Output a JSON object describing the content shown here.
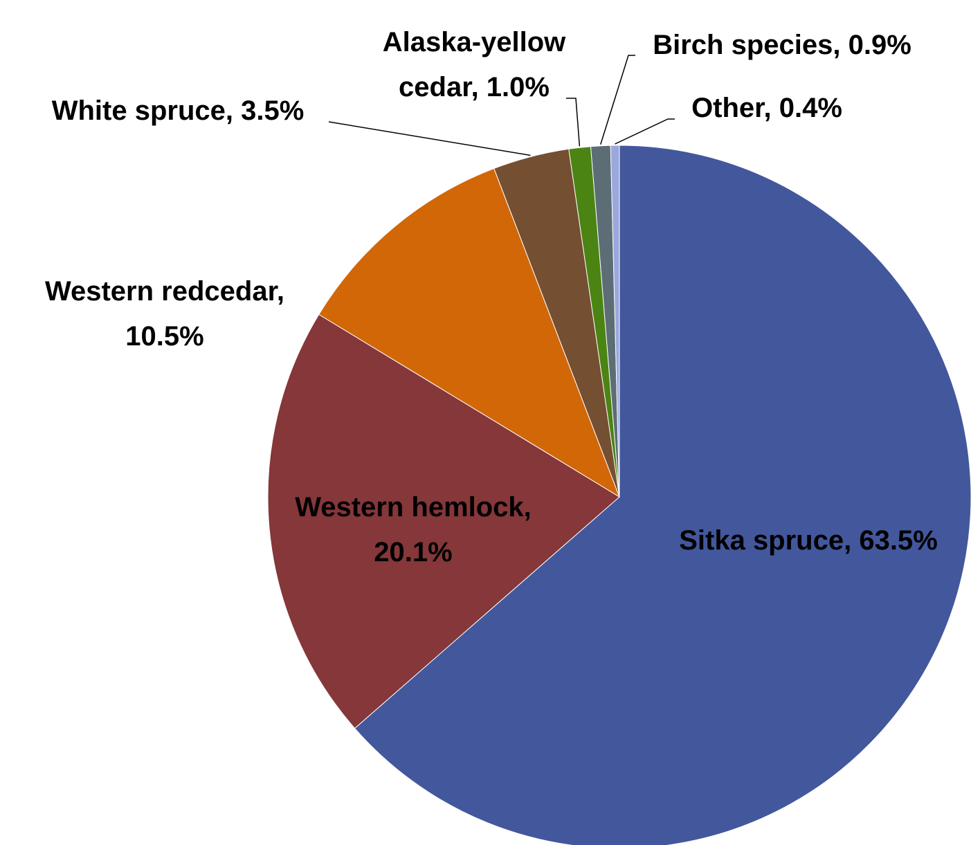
{
  "chart_data": {
    "type": "pie",
    "categories": [
      "Sitka spruce",
      "Western hemlock",
      "Western redcedar",
      "White spruce",
      "Alaska-yellow cedar",
      "Birch species",
      "Other"
    ],
    "values": [
      63.5,
      20.1,
      10.5,
      3.5,
      1.0,
      0.9,
      0.4
    ],
    "labels": [
      [
        "Sitka spruce, 63.5%"
      ],
      [
        "Western hemlock,",
        "20.1%"
      ],
      [
        "Western redcedar,",
        "10.5%"
      ],
      [
        "White spruce, 3.5%"
      ],
      [
        "Alaska-yellow",
        "cedar, 1.0%"
      ],
      [
        "Birch species, 0.9%"
      ],
      [
        "Other, 0.4%"
      ]
    ],
    "colors": [
      "#43579c",
      "#853739",
      "#d26708",
      "#744f31",
      "#4b8413",
      "#5c6d76",
      "#9ba8dd"
    ]
  }
}
